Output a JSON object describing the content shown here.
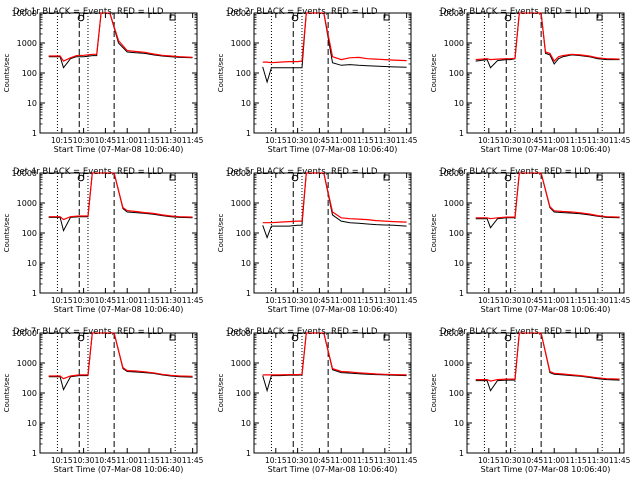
{
  "chart_data": [
    {
      "type": "line",
      "title": "Det 1r BLACK = Events, RED = LLD",
      "xlabel": "Start Time (07-Mar-08 10:06:40)",
      "ylabel": "Counts/sec",
      "x_ticks": [
        "10:15",
        "10:30",
        "10:45",
        "11:00",
        "11:15",
        "11:30",
        "11:45"
      ],
      "y_ticks": [
        "1",
        "10",
        "100",
        "1000",
        "10000"
      ],
      "y_scale": "log",
      "ylim": [
        1,
        10000
      ],
      "x": [
        10.1,
        10.23,
        10.27,
        10.35,
        10.42,
        10.5,
        10.55,
        10.6,
        10.65,
        10.7,
        10.75,
        10.8,
        10.9,
        11.0,
        11.1,
        11.2,
        11.3,
        11.4,
        11.5,
        11.6,
        11.75
      ],
      "series": [
        {
          "name": "Events",
          "color": "#000000",
          "values": [
            350,
            350,
            150,
            300,
            350,
            350,
            360,
            380,
            380,
            10000,
            10000,
            10000,
            1000,
            500,
            470,
            450,
            400,
            370,
            350,
            330,
            320
          ]
        },
        {
          "name": "LLD",
          "color": "#ff0000",
          "values": [
            370,
            370,
            250,
            320,
            380,
            390,
            400,
            420,
            420,
            10000,
            10000,
            10000,
            1200,
            560,
            520,
            490,
            430,
            390,
            370,
            350,
            330
          ]
        }
      ],
      "vlines_dotted": [
        10.2,
        10.55,
        11.55
      ],
      "vlines_dashed": [
        10.45,
        10.85
      ]
    },
    {
      "type": "line",
      "title": "Det 2r BLACK = Events, RED = LLD",
      "xlabel": "Start Time (07-Mar-08 10:06:40)",
      "ylabel": "Counts/sec",
      "x_ticks": [
        "10:15",
        "10:30",
        "10:45",
        "11:00",
        "11:15",
        "11:30",
        "11:45"
      ],
      "y_ticks": [
        "1",
        "10",
        "100",
        "1000",
        "10000"
      ],
      "y_scale": "log",
      "ylim": [
        1,
        10000
      ],
      "x": [
        10.1,
        10.15,
        10.2,
        10.3,
        10.4,
        10.5,
        10.55,
        10.6,
        10.65,
        10.7,
        10.8,
        10.9,
        11.0,
        11.1,
        11.2,
        11.3,
        11.4,
        11.5,
        11.6,
        11.75
      ],
      "series": [
        {
          "name": "Events",
          "color": "#000000",
          "values": [
            160,
            50,
            150,
            150,
            150,
            150,
            150,
            10000,
            10000,
            10000,
            10000,
            220,
            180,
            190,
            180,
            175,
            170,
            165,
            160,
            155
          ]
        },
        {
          "name": "LLD",
          "color": "#ff0000",
          "values": [
            230,
            230,
            220,
            230,
            240,
            240,
            250,
            10000,
            10000,
            10000,
            10000,
            350,
            280,
            320,
            330,
            300,
            290,
            280,
            270,
            260
          ]
        }
      ],
      "vlines_dotted": [
        10.2,
        10.55,
        11.55
      ],
      "vlines_dashed": [
        10.45,
        10.85
      ]
    },
    {
      "type": "line",
      "title": "Det 3r BLACK = Events, RED = LLD",
      "xlabel": "Start Time (07-Mar-08 10:06:40)",
      "ylabel": "Counts/sec",
      "x_ticks": [
        "10:15",
        "10:30",
        "10:45",
        "11:00",
        "11:15",
        "11:30",
        "11:45"
      ],
      "y_ticks": [
        "1",
        "10",
        "100",
        "1000",
        "10000"
      ],
      "y_scale": "log",
      "ylim": [
        1,
        10000
      ],
      "x": [
        10.1,
        10.23,
        10.27,
        10.35,
        10.45,
        10.5,
        10.55,
        10.6,
        10.75,
        10.85,
        10.9,
        10.95,
        11.0,
        11.05,
        11.1,
        11.2,
        11.3,
        11.4,
        11.5,
        11.6,
        11.75
      ],
      "series": [
        {
          "name": "Events",
          "color": "#000000",
          "values": [
            250,
            280,
            150,
            260,
            280,
            280,
            300,
            10000,
            10000,
            10000,
            450,
            400,
            200,
            300,
            350,
            400,
            380,
            350,
            300,
            280,
            280
          ]
        },
        {
          "name": "LLD",
          "color": "#ff0000",
          "values": [
            280,
            300,
            280,
            290,
            300,
            300,
            310,
            10000,
            10000,
            10000,
            500,
            450,
            250,
            350,
            380,
            420,
            400,
            370,
            320,
            300,
            290
          ]
        }
      ],
      "vlines_dotted": [
        10.2,
        10.55,
        11.55
      ],
      "vlines_dashed": [
        10.45,
        10.85
      ]
    },
    {
      "type": "line",
      "title": "Det 4r BLACK = Events, RED = LLD",
      "xlabel": "Start Time (07-Mar-08 10:06:40)",
      "ylabel": "Counts/sec",
      "x_ticks": [
        "10:15",
        "10:30",
        "10:45",
        "11:00",
        "11:15",
        "11:30",
        "11:45"
      ],
      "y_ticks": [
        "1",
        "10",
        "100",
        "1000",
        "10000"
      ],
      "y_scale": "log",
      "ylim": [
        1,
        10000
      ],
      "x": [
        10.1,
        10.23,
        10.27,
        10.35,
        10.45,
        10.55,
        10.6,
        10.75,
        10.85,
        10.95,
        11.0,
        11.1,
        11.2,
        11.3,
        11.4,
        11.5,
        11.6,
        11.75
      ],
      "series": [
        {
          "name": "Events",
          "color": "#000000",
          "values": [
            330,
            330,
            120,
            330,
            350,
            350,
            10000,
            10000,
            10000,
            650,
            500,
            480,
            450,
            420,
            380,
            350,
            330,
            320
          ]
        },
        {
          "name": "LLD",
          "color": "#ff0000",
          "values": [
            350,
            350,
            280,
            350,
            370,
            370,
            10000,
            10000,
            10000,
            700,
            560,
            520,
            480,
            450,
            400,
            370,
            350,
            340
          ]
        }
      ],
      "vlines_dotted": [
        10.2,
        10.55,
        11.55
      ],
      "vlines_dashed": [
        10.45,
        10.85
      ]
    },
    {
      "type": "line",
      "title": "Det 5r BLACK = Events, RED = LLD",
      "xlabel": "Start Time (07-Mar-08 10:06:40)",
      "ylabel": "Counts/sec",
      "x_ticks": [
        "10:15",
        "10:30",
        "10:45",
        "11:00",
        "11:15",
        "11:30",
        "11:45"
      ],
      "y_ticks": [
        "1",
        "10",
        "100",
        "1000",
        "10000"
      ],
      "y_scale": "log",
      "ylim": [
        1,
        10000
      ],
      "x": [
        10.1,
        10.15,
        10.2,
        10.3,
        10.4,
        10.5,
        10.55,
        10.6,
        10.7,
        10.8,
        10.9,
        11.0,
        11.1,
        11.2,
        11.3,
        11.4,
        11.5,
        11.6,
        11.75
      ],
      "series": [
        {
          "name": "Events",
          "color": "#000000",
          "values": [
            180,
            70,
            170,
            170,
            170,
            180,
            180,
            10000,
            10000,
            10000,
            400,
            250,
            220,
            210,
            200,
            190,
            185,
            180,
            170
          ]
        },
        {
          "name": "LLD",
          "color": "#ff0000",
          "values": [
            220,
            220,
            220,
            230,
            240,
            250,
            250,
            10000,
            10000,
            10000,
            500,
            320,
            300,
            290,
            280,
            260,
            250,
            240,
            230
          ]
        }
      ],
      "vlines_dotted": [
        10.2,
        10.55,
        11.55
      ],
      "vlines_dashed": [
        10.45,
        10.85
      ]
    },
    {
      "type": "line",
      "title": "Det 6r BLACK = Events, RED = LLD",
      "xlabel": "Start Time (07-Mar-08 10:06:40)",
      "ylabel": "Counts/sec",
      "x_ticks": [
        "10:15",
        "10:30",
        "10:45",
        "11:00",
        "11:15",
        "11:30",
        "11:45"
      ],
      "y_ticks": [
        "1",
        "10",
        "100",
        "1000",
        "10000"
      ],
      "y_scale": "log",
      "ylim": [
        1,
        10000
      ],
      "x": [
        10.1,
        10.23,
        10.27,
        10.35,
        10.45,
        10.55,
        10.6,
        10.75,
        10.85,
        10.95,
        11.0,
        11.1,
        11.2,
        11.3,
        11.4,
        11.5,
        11.6,
        11.75
      ],
      "series": [
        {
          "name": "Events",
          "color": "#000000",
          "values": [
            300,
            300,
            150,
            300,
            320,
            320,
            10000,
            10000,
            10000,
            700,
            500,
            480,
            460,
            440,
            400,
            360,
            330,
            320
          ]
        },
        {
          "name": "LLD",
          "color": "#ff0000",
          "values": [
            320,
            320,
            300,
            320,
            340,
            340,
            10000,
            10000,
            10000,
            750,
            550,
            520,
            500,
            470,
            430,
            380,
            350,
            340
          ]
        }
      ],
      "vlines_dotted": [
        10.2,
        10.55,
        11.55
      ],
      "vlines_dashed": [
        10.45,
        10.85
      ]
    },
    {
      "type": "line",
      "title": "Det 7r BLACK = Events, RED = LLD",
      "xlabel": "Start Time (07-Mar-08 10:06:40)",
      "ylabel": "Counts/sec",
      "x_ticks": [
        "10:15",
        "10:30",
        "10:45",
        "11:00",
        "11:15",
        "11:30",
        "11:45"
      ],
      "y_ticks": [
        "1",
        "10",
        "100",
        "1000",
        "10000"
      ],
      "y_scale": "log",
      "ylim": [
        1,
        10000
      ],
      "x": [
        10.1,
        10.23,
        10.27,
        10.35,
        10.45,
        10.55,
        10.6,
        10.75,
        10.85,
        10.95,
        11.0,
        11.1,
        11.2,
        11.3,
        11.4,
        11.5,
        11.6,
        11.75
      ],
      "series": [
        {
          "name": "Events",
          "color": "#000000",
          "values": [
            350,
            350,
            130,
            350,
            380,
            380,
            10000,
            10000,
            10000,
            650,
            520,
            500,
            480,
            450,
            400,
            370,
            350,
            340
          ]
        },
        {
          "name": "LLD",
          "color": "#ff0000",
          "values": [
            370,
            370,
            300,
            370,
            400,
            400,
            10000,
            10000,
            10000,
            700,
            560,
            540,
            510,
            470,
            420,
            390,
            370,
            360
          ]
        }
      ],
      "vlines_dotted": [
        10.2,
        10.55,
        11.55
      ],
      "vlines_dashed": [
        10.45,
        10.85
      ]
    },
    {
      "type": "line",
      "title": "Det 8r BLACK = Events, RED = LLD",
      "xlabel": "Start Time (07-Mar-08 10:06:40)",
      "ylabel": "Counts/sec",
      "x_ticks": [
        "10:15",
        "10:30",
        "10:45",
        "11:00",
        "11:15",
        "11:30",
        "11:45"
      ],
      "y_ticks": [
        "1",
        "10",
        "100",
        "1000",
        "10000"
      ],
      "y_scale": "log",
      "ylim": [
        1,
        10000
      ],
      "x": [
        10.1,
        10.15,
        10.2,
        10.3,
        10.4,
        10.5,
        10.55,
        10.6,
        10.7,
        10.8,
        10.9,
        11.0,
        11.1,
        11.2,
        11.3,
        11.4,
        11.5,
        11.6,
        11.75
      ],
      "series": [
        {
          "name": "Events",
          "color": "#000000",
          "values": [
            380,
            120,
            380,
            380,
            390,
            390,
            400,
            10000,
            10000,
            10000,
            600,
            480,
            460,
            440,
            420,
            410,
            400,
            390,
            380
          ]
        },
        {
          "name": "LLD",
          "color": "#ff0000",
          "values": [
            400,
            400,
            400,
            400,
            410,
            410,
            420,
            10000,
            10000,
            10000,
            650,
            520,
            500,
            470,
            450,
            430,
            420,
            410,
            400
          ]
        }
      ],
      "vlines_dotted": [
        10.2,
        10.55,
        11.55
      ],
      "vlines_dashed": [
        10.45,
        10.85
      ]
    },
    {
      "type": "line",
      "title": "Det 9r BLACK = Events, RED = LLD",
      "xlabel": "Start Time (07-Mar-08 10:06:40)",
      "ylabel": "Counts/sec",
      "x_ticks": [
        "10:15",
        "10:30",
        "10:45",
        "11:00",
        "11:15",
        "11:30",
        "11:45"
      ],
      "y_ticks": [
        "1",
        "10",
        "100",
        "1000",
        "10000"
      ],
      "y_scale": "log",
      "ylim": [
        1,
        10000
      ],
      "x": [
        10.1,
        10.23,
        10.27,
        10.35,
        10.45,
        10.55,
        10.6,
        10.75,
        10.85,
        10.95,
        11.0,
        11.1,
        11.2,
        11.3,
        11.4,
        11.5,
        11.6,
        11.75
      ],
      "series": [
        {
          "name": "Events",
          "color": "#000000",
          "values": [
            260,
            260,
            120,
            260,
            270,
            270,
            10000,
            10000,
            10000,
            480,
            420,
            400,
            380,
            360,
            330,
            300,
            280,
            270
          ]
        },
        {
          "name": "LLD",
          "color": "#ff0000",
          "values": [
            280,
            280,
            250,
            280,
            290,
            290,
            10000,
            10000,
            10000,
            520,
            450,
            430,
            400,
            380,
            350,
            320,
            300,
            290
          ]
        }
      ],
      "vlines_dotted": [
        10.2,
        10.55,
        11.55
      ],
      "vlines_dashed": [
        10.45,
        10.85
      ]
    }
  ]
}
